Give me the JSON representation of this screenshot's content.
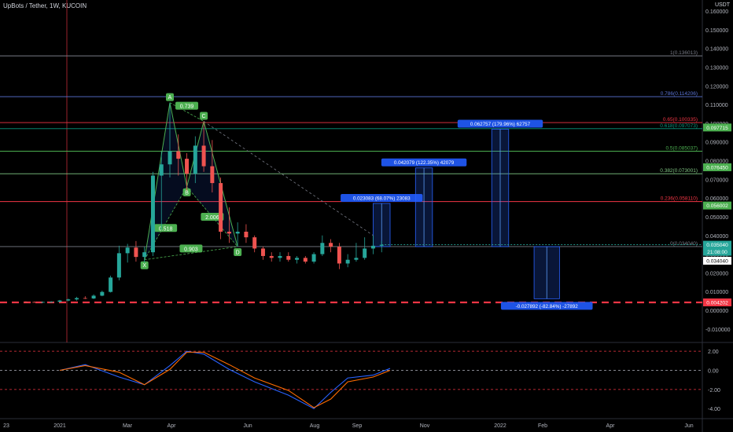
{
  "header": {
    "title": "UpBots / Tether, 1W, KUCOIN",
    "currency": "USDT"
  },
  "price_axis": {
    "ticks": [
      "0.160000",
      "0.150000",
      "0.140000",
      "0.130000",
      "0.120000",
      "0.110000",
      "0.100000",
      "0.090000",
      "0.080000",
      "0.070000",
      "0.060000",
      "0.050000",
      "0.040000",
      "0.030000",
      "0.020000",
      "0.010000",
      "0.000000",
      "-0.010000"
    ],
    "badges": [
      {
        "text": "0.097715",
        "bg": "#4caf50",
        "fg": "#ffffff"
      },
      {
        "text": "0.076450",
        "bg": "#4caf50",
        "fg": "#ffffff"
      },
      {
        "text": "0.056002",
        "bg": "#4caf50",
        "fg": "#ffffff"
      },
      {
        "text": "0.035040",
        "bg": "#26a69a",
        "fg": "#ffffff"
      },
      {
        "text": "21:08:00",
        "bg": "#26a69a",
        "fg": "#ffffff"
      },
      {
        "text": "0.034040",
        "bg": "#ffffff",
        "fg": "#000000"
      },
      {
        "text": "0.004202",
        "bg": "#f23645",
        "fg": "#ffffff"
      }
    ]
  },
  "fib_levels": [
    {
      "ratio": "1",
      "text": "1(0.136013)",
      "price": 0.136013,
      "color": "#787b86"
    },
    {
      "ratio": "0.786",
      "text": "0.786(0.114206)",
      "price": 0.114206,
      "color": "#5b74d6"
    },
    {
      "ratio": "0.65",
      "text": "0.65(0.100335)",
      "price": 0.100335,
      "color": "#f23645"
    },
    {
      "ratio": "0.618",
      "text": "0.618(0.097073)",
      "price": 0.097073,
      "color": "#089981"
    },
    {
      "ratio": "0.5",
      "text": "0.5(0.085037)",
      "price": 0.085037,
      "color": "#4caf50"
    },
    {
      "ratio": "0.382",
      "text": "0.382(0.073001)",
      "price": 0.073001,
      "color": "#81c784"
    },
    {
      "ratio": "0.236",
      "text": "0.236(0.058110)",
      "price": 0.05811,
      "color": "#f23645"
    },
    {
      "ratio": "0",
      "text": "0(0.034040)",
      "price": 0.03404,
      "color": "#787b86"
    }
  ],
  "pattern": {
    "points": [
      {
        "label": "X",
        "date": "2021-03-15",
        "price": 0.027
      },
      {
        "label": "A",
        "date": "2021-04-05",
        "price": 0.111
      },
      {
        "label": "B",
        "date": "2021-04-19",
        "price": 0.066
      },
      {
        "label": "C",
        "date": "2021-05-03",
        "price": 0.101
      },
      {
        "label": "D",
        "date": "2021-05-31",
        "price": 0.034
      }
    ],
    "ratios": [
      {
        "text": "0.739"
      },
      {
        "text": "0.518"
      },
      {
        "text": "2.006"
      },
      {
        "text": "0.903"
      }
    ]
  },
  "targets": [
    {
      "text": "0.023083 (68.07%) 23083",
      "date_start": "2021-09-20",
      "date_end": "2021-10-04",
      "from": 0.03404,
      "to": 0.057123
    },
    {
      "text": "0.042079 (122.35%) 42079",
      "date_start": "2021-10-25",
      "date_end": "2021-11-08",
      "from": 0.03404,
      "to": 0.076119
    },
    {
      "text": "0.062757 (179.96%) 62757",
      "date_start": "2021-12-27",
      "date_end": "2022-01-10",
      "from": 0.03404,
      "to": 0.096797
    },
    {
      "text": "-0.027892 (-82.84%) -27892",
      "date_start": "2022-01-31",
      "date_end": "2022-02-21",
      "from": 0.03404,
      "to": 0.006148
    }
  ],
  "time_axis": {
    "labels": [
      "23",
      "2021",
      "Mar",
      "Apr",
      "Jun",
      "Aug",
      "Sep",
      "Nov",
      "2022",
      "Feb",
      "Apr",
      "Jun"
    ]
  },
  "oscillator": {
    "ticks": [
      "2.00",
      "0.00",
      "-2.00",
      "-4.00"
    ],
    "levels": [
      2.0,
      0.0,
      -2.0
    ]
  },
  "colors": {
    "up": "#26a69a",
    "down": "#ef5350",
    "blue_line": "#2962ff",
    "orange_line": "#ff6d00",
    "target_box": "#2962ff"
  },
  "chart_data": {
    "type": "candlestick",
    "title": "UpBots / Tether, 1W, KUCOIN",
    "ylim": [
      -0.01,
      0.165
    ],
    "candles": [
      {
        "x": "2020-12-07",
        "o": 0.0045,
        "h": 0.0048,
        "l": 0.004,
        "c": 0.0044
      },
      {
        "x": "2020-12-14",
        "o": 0.0044,
        "h": 0.0047,
        "l": 0.0041,
        "c": 0.0043
      },
      {
        "x": "2020-12-21",
        "o": 0.0043,
        "h": 0.0046,
        "l": 0.004,
        "c": 0.0044
      },
      {
        "x": "2020-12-28",
        "o": 0.0044,
        "h": 0.0048,
        "l": 0.0042,
        "c": 0.0045
      },
      {
        "x": "2021-01-04",
        "o": 0.0045,
        "h": 0.0055,
        "l": 0.0043,
        "c": 0.0052
      },
      {
        "x": "2021-01-11",
        "o": 0.0052,
        "h": 0.0062,
        "l": 0.0048,
        "c": 0.0058
      },
      {
        "x": "2021-01-18",
        "o": 0.0058,
        "h": 0.0072,
        "l": 0.0052,
        "c": 0.0065
      },
      {
        "x": "2021-01-25",
        "o": 0.0065,
        "h": 0.0075,
        "l": 0.006,
        "c": 0.0063
      },
      {
        "x": "2021-02-01",
        "o": 0.0063,
        "h": 0.0085,
        "l": 0.006,
        "c": 0.0078
      },
      {
        "x": "2021-02-08",
        "o": 0.0078,
        "h": 0.0105,
        "l": 0.0075,
        "c": 0.0098
      },
      {
        "x": "2021-02-15",
        "o": 0.0098,
        "h": 0.0185,
        "l": 0.0095,
        "c": 0.0175
      },
      {
        "x": "2021-02-22",
        "o": 0.0175,
        "h": 0.0345,
        "l": 0.016,
        "c": 0.0305
      },
      {
        "x": "2021-03-01",
        "o": 0.0305,
        "h": 0.0355,
        "l": 0.0255,
        "c": 0.0335
      },
      {
        "x": "2021-03-08",
        "o": 0.0335,
        "h": 0.037,
        "l": 0.026,
        "c": 0.0285
      },
      {
        "x": "2021-03-15",
        "o": 0.0285,
        "h": 0.034,
        "l": 0.0255,
        "c": 0.031
      },
      {
        "x": "2021-03-22",
        "o": 0.031,
        "h": 0.074,
        "l": 0.029,
        "c": 0.072
      },
      {
        "x": "2021-03-29",
        "o": 0.072,
        "h": 0.085,
        "l": 0.043,
        "c": 0.078
      },
      {
        "x": "2021-04-05",
        "o": 0.078,
        "h": 0.111,
        "l": 0.071,
        "c": 0.085
      },
      {
        "x": "2021-04-12",
        "o": 0.085,
        "h": 0.094,
        "l": 0.072,
        "c": 0.081
      },
      {
        "x": "2021-04-19",
        "o": 0.081,
        "h": 0.084,
        "l": 0.064,
        "c": 0.073
      },
      {
        "x": "2021-04-26",
        "o": 0.073,
        "h": 0.093,
        "l": 0.068,
        "c": 0.088
      },
      {
        "x": "2021-05-03",
        "o": 0.088,
        "h": 0.101,
        "l": 0.074,
        "c": 0.077
      },
      {
        "x": "2021-05-10",
        "o": 0.077,
        "h": 0.091,
        "l": 0.063,
        "c": 0.068
      },
      {
        "x": "2021-05-17",
        "o": 0.068,
        "h": 0.071,
        "l": 0.038,
        "c": 0.042
      },
      {
        "x": "2021-05-24",
        "o": 0.042,
        "h": 0.055,
        "l": 0.036,
        "c": 0.041
      },
      {
        "x": "2021-05-31",
        "o": 0.041,
        "h": 0.047,
        "l": 0.034,
        "c": 0.042
      },
      {
        "x": "2021-06-07",
        "o": 0.042,
        "h": 0.046,
        "l": 0.036,
        "c": 0.039
      },
      {
        "x": "2021-06-14",
        "o": 0.039,
        "h": 0.04,
        "l": 0.031,
        "c": 0.033
      },
      {
        "x": "2021-06-21",
        "o": 0.033,
        "h": 0.034,
        "l": 0.027,
        "c": 0.029
      },
      {
        "x": "2021-06-28",
        "o": 0.029,
        "h": 0.031,
        "l": 0.026,
        "c": 0.028
      },
      {
        "x": "2021-07-05",
        "o": 0.028,
        "h": 0.031,
        "l": 0.026,
        "c": 0.029
      },
      {
        "x": "2021-07-12",
        "o": 0.029,
        "h": 0.031,
        "l": 0.026,
        "c": 0.027
      },
      {
        "x": "2021-07-19",
        "o": 0.027,
        "h": 0.029,
        "l": 0.025,
        "c": 0.028
      },
      {
        "x": "2021-07-26",
        "o": 0.028,
        "h": 0.029,
        "l": 0.025,
        "c": 0.026
      },
      {
        "x": "2021-08-02",
        "o": 0.026,
        "h": 0.031,
        "l": 0.025,
        "c": 0.03
      },
      {
        "x": "2021-08-09",
        "o": 0.03,
        "h": 0.04,
        "l": 0.029,
        "c": 0.036
      },
      {
        "x": "2021-08-16",
        "o": 0.036,
        "h": 0.038,
        "l": 0.031,
        "c": 0.034
      },
      {
        "x": "2021-08-23",
        "o": 0.034,
        "h": 0.036,
        "l": 0.022,
        "c": 0.025
      },
      {
        "x": "2021-08-30",
        "o": 0.025,
        "h": 0.03,
        "l": 0.023,
        "c": 0.027
      },
      {
        "x": "2021-09-06",
        "o": 0.027,
        "h": 0.036,
        "l": 0.026,
        "c": 0.028
      },
      {
        "x": "2021-09-13",
        "o": 0.028,
        "h": 0.039,
        "l": 0.027,
        "c": 0.033
      },
      {
        "x": "2021-09-20",
        "o": 0.033,
        "h": 0.04,
        "l": 0.03,
        "c": 0.0345
      },
      {
        "x": "2021-09-27",
        "o": 0.0345,
        "h": 0.037,
        "l": 0.031,
        "c": 0.035
      }
    ],
    "oscillator_series": [
      {
        "name": "blue",
        "x": [
          "2021-01-04",
          "2021-01-25",
          "2021-02-22",
          "2021-03-15",
          "2021-04-05",
          "2021-04-19",
          "2021-05-03",
          "2021-05-24",
          "2021-06-14",
          "2021-07-12",
          "2021-08-02",
          "2021-08-16",
          "2021-08-30",
          "2021-09-20",
          "2021-10-04"
        ],
        "values": [
          0.0,
          0.6,
          -0.7,
          -1.5,
          0.5,
          2.0,
          1.7,
          0.1,
          -1.2,
          -2.6,
          -4.0,
          -2.3,
          -0.8,
          -0.5,
          0.2
        ]
      },
      {
        "name": "orange",
        "x": [
          "2021-01-04",
          "2021-01-25",
          "2021-02-22",
          "2021-03-15",
          "2021-04-05",
          "2021-04-19",
          "2021-05-03",
          "2021-05-24",
          "2021-06-14",
          "2021-07-12",
          "2021-08-02",
          "2021-08-16",
          "2021-08-30",
          "2021-09-20",
          "2021-10-04"
        ],
        "values": [
          0.0,
          0.5,
          -0.2,
          -1.5,
          0.1,
          1.9,
          1.9,
          0.6,
          -0.8,
          -2.1,
          -3.9,
          -3.0,
          -1.2,
          -0.7,
          0.0
        ]
      }
    ]
  }
}
